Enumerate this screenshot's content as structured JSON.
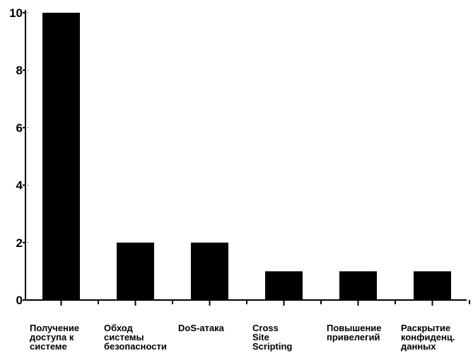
{
  "chart_data": {
    "type": "bar",
    "title": "",
    "xlabel": "",
    "ylabel": "",
    "categories": [
      "Получение доступа к системе",
      "Обход системы безопасности",
      "DoS-атака",
      "Cross Site Scripting",
      "Повышение привелегий",
      "Раскрытие конфиденц. данных"
    ],
    "category_label_lines": [
      [
        "Получение",
        "доступа к",
        "системе"
      ],
      [
        "Обход",
        "системы",
        "безопасности"
      ],
      [
        "DoS-атака"
      ],
      [
        "Cross",
        "Site",
        "Scripting"
      ],
      [
        "Повышение",
        "привелегий"
      ],
      [
        "Раскрытие",
        "конфиденц.",
        "данных"
      ]
    ],
    "values": [
      10,
      2,
      2,
      1,
      1,
      1
    ],
    "ylim": [
      0,
      10
    ],
    "yticks": [
      "0",
      "2",
      "4",
      "6",
      "8",
      "10"
    ],
    "grid": false,
    "legend": "none",
    "bar_color": "#000000"
  }
}
